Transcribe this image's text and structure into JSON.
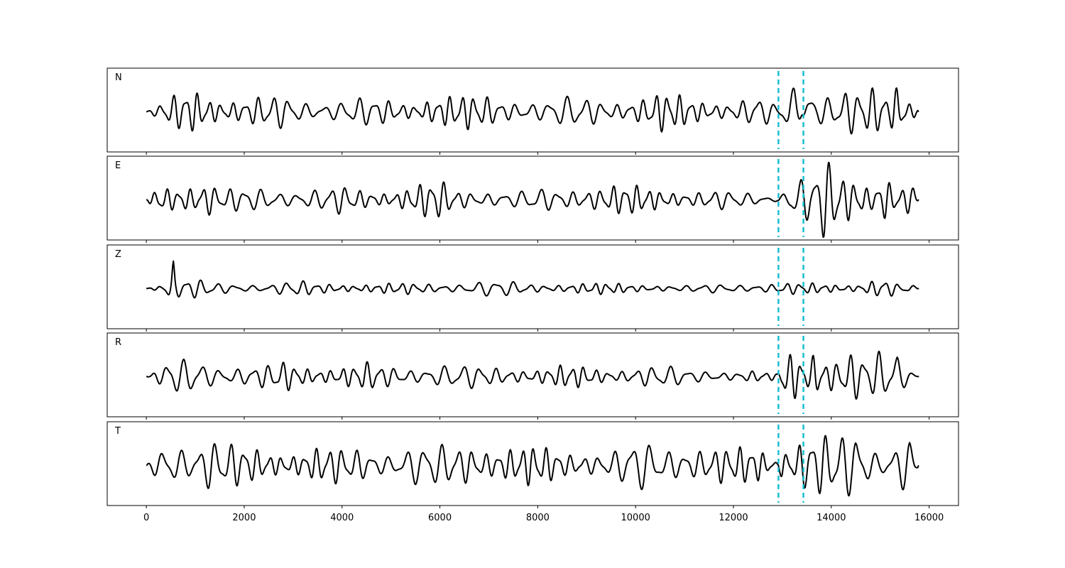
{
  "chart_data": {
    "type": "line",
    "title": "",
    "xlabel": "",
    "ylabel": "",
    "xlim": [
      -800,
      16600
    ],
    "x_ticks": [
      0,
      2000,
      4000,
      6000,
      8000,
      10000,
      12000,
      14000,
      16000
    ],
    "x_tick_labels": [
      "0",
      "2000",
      "4000",
      "6000",
      "8000",
      "10000",
      "12000",
      "14000",
      "16000"
    ],
    "grid": false,
    "y_ticks_shown": false,
    "picks": {
      "color": "#17becf",
      "x": [
        12920,
        13430
      ],
      "style": "dashed"
    },
    "series_color": "#000000",
    "panels": [
      {
        "name": "N",
        "label": "N",
        "x": [
          0,
          500,
          900,
          1100,
          1500,
          2000,
          2800,
          3500,
          4000,
          4500,
          5500,
          5800,
          6500,
          7000,
          7800,
          8000,
          9000,
          9500,
          10000,
          10500,
          11000,
          11500,
          12000,
          12500,
          12900,
          13000,
          13150,
          13250,
          13400,
          13500,
          13600,
          13700,
          13900,
          14100,
          14300,
          14600,
          14800,
          15000,
          15200,
          15350,
          15500,
          15700,
          15800
        ],
        "values": [
          0,
          0.25,
          0.45,
          -0.45,
          0.3,
          -0.25,
          0.3,
          -0.2,
          0.25,
          -0.25,
          0.2,
          0.35,
          -0.3,
          0.3,
          -0.25,
          0.2,
          -0.3,
          0.25,
          -0.25,
          0.35,
          -0.3,
          0.25,
          -0.2,
          -0.3,
          0.1,
          -0.2,
          0.6,
          -0.6,
          0.1,
          -0.55,
          0.75,
          -0.45,
          0.45,
          -0.4,
          0.45,
          -0.35,
          0.4,
          -0.45,
          0.3,
          0.75,
          -0.4,
          -0.2,
          0.05
        ]
      },
      {
        "name": "E",
        "label": "E",
        "x": [
          0,
          300,
          600,
          800,
          1000,
          1200,
          1500,
          2000,
          2500,
          3000,
          3500,
          4000,
          4500,
          5000,
          5500,
          6000,
          6300,
          6500,
          7000,
          7500,
          8000,
          8500,
          9000,
          9500,
          10000,
          10500,
          11000,
          11500,
          12000,
          12500,
          12900,
          13000,
          13150,
          13300,
          13450,
          13600,
          13700,
          13850,
          14000,
          14300,
          14600,
          14800,
          14950,
          15100,
          15300,
          15500,
          15700,
          15800
        ],
        "values": [
          0,
          -0.3,
          0.3,
          -0.4,
          0.35,
          -0.45,
          0.2,
          -0.2,
          0.25,
          -0.2,
          0.2,
          -0.25,
          0.2,
          -0.2,
          0.3,
          -0.35,
          0.2,
          -0.2,
          0.2,
          -0.15,
          0.2,
          -0.2,
          0.3,
          -0.3,
          0.25,
          -0.2,
          0.2,
          -0.2,
          0.15,
          0.1,
          0.05,
          -0.2,
          0.55,
          -0.5,
          0.6,
          -0.35,
          0.7,
          -0.75,
          0.6,
          -0.4,
          0.4,
          -0.3,
          0.55,
          -0.75,
          0.35,
          -0.3,
          0.3,
          0
        ]
      },
      {
        "name": "Z",
        "label": "Z",
        "x": [
          0,
          300,
          450,
          500,
          550,
          600,
          700,
          900,
          1100,
          1500,
          2000,
          2500,
          3000,
          3500,
          4000,
          5000,
          6000,
          7000,
          8000,
          9000,
          10000,
          11000,
          12000,
          12900,
          13500,
          14000,
          14500,
          15000,
          15200,
          15400,
          15600,
          15800
        ],
        "values": [
          0,
          0.1,
          0.3,
          -0.4,
          0.75,
          -0.25,
          0.2,
          -0.2,
          0.15,
          -0.1,
          0.1,
          -0.1,
          0.15,
          -0.1,
          0.1,
          -0.1,
          0.1,
          -0.15,
          0.1,
          -0.1,
          0.1,
          -0.05,
          0.1,
          -0.1,
          0.1,
          -0.1,
          0.1,
          0.2,
          -0.15,
          0.05,
          0.1,
          0
        ]
      },
      {
        "name": "R",
        "label": "R",
        "x": [
          0,
          300,
          500,
          700,
          900,
          1100,
          1300,
          1800,
          2500,
          2800,
          3500,
          4000,
          4500,
          5000,
          5500,
          6000,
          6500,
          7000,
          7500,
          8000,
          8500,
          9000,
          9500,
          10000,
          10500,
          11000,
          11500,
          12000,
          12500,
          12900,
          13050,
          13200,
          13300,
          13450,
          13550,
          13650,
          13750,
          13900,
          14100,
          14300,
          14600,
          14800,
          15000,
          15200,
          15350,
          15450,
          15600,
          15800
        ],
        "values": [
          0,
          0.15,
          0.35,
          -0.3,
          0.35,
          -0.4,
          0.3,
          -0.2,
          0.2,
          0.3,
          -0.2,
          0.2,
          -0.25,
          0.2,
          -0.2,
          0.25,
          -0.2,
          0.2,
          -0.2,
          0.15,
          -0.2,
          0.2,
          -0.15,
          0.2,
          -0.2,
          0.15,
          -0.15,
          0.1,
          -0.1,
          0.05,
          -0.5,
          0.55,
          -0.6,
          0.45,
          -0.4,
          0.85,
          -0.55,
          0.45,
          -0.35,
          0.45,
          -0.4,
          0.3,
          -0.5,
          0.45,
          0.7,
          -0.4,
          0.2,
          0
        ]
      },
      {
        "name": "T",
        "label": "T",
        "x": [
          0,
          300,
          600,
          900,
          1300,
          1600,
          2000,
          2500,
          3000,
          3500,
          4000,
          4500,
          5000,
          5500,
          6000,
          6500,
          6600,
          7000,
          7500,
          8000,
          8500,
          9000,
          9500,
          10000,
          10500,
          11000,
          11500,
          12000,
          12500,
          12900,
          13000,
          13200,
          13400,
          13600,
          13800,
          14000,
          14200,
          14400,
          14500,
          14800,
          15000,
          15200,
          15400,
          15600,
          15800
        ],
        "values": [
          0,
          0.35,
          -0.55,
          0.45,
          -0.6,
          0.4,
          -0.35,
          0.3,
          -0.3,
          0.35,
          -0.3,
          0.35,
          -0.3,
          0.4,
          -0.35,
          0.45,
          -0.5,
          0.4,
          -0.35,
          0.35,
          -0.3,
          0.3,
          -0.25,
          0.45,
          -0.4,
          0.45,
          -0.35,
          0.3,
          0.4,
          0.1,
          -0.5,
          0.45,
          -0.6,
          0.65,
          -0.55,
          0.5,
          -0.6,
          0.6,
          0.75,
          -0.5,
          0.3,
          -0.45,
          0.6,
          -0.6,
          0.05
        ]
      }
    ]
  }
}
